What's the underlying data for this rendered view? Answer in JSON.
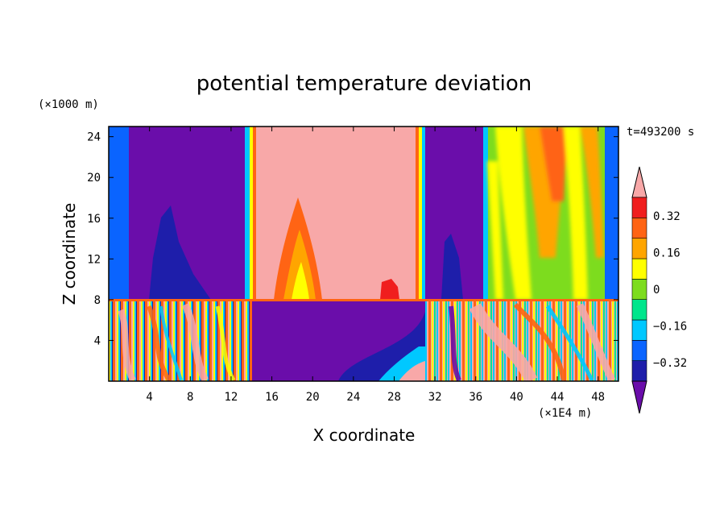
{
  "chart_data": {
    "type": "heatmap",
    "title": "potential temperature deviation",
    "xlabel": "X coordinate",
    "ylabel": "Z coordinate",
    "x_unit": "(×1E4 m)",
    "y_unit": "(×1000 m)",
    "time_label": "t=493200 s",
    "xlim": [
      0,
      50
    ],
    "ylim": [
      0,
      25
    ],
    "x_ticks": [
      4,
      8,
      12,
      16,
      20,
      24,
      28,
      32,
      36,
      40,
      44,
      48
    ],
    "y_ticks": [
      4,
      8,
      12,
      16,
      20,
      24
    ],
    "colorbar": {
      "labels": [
        0.32,
        0.16,
        0,
        -0.16,
        -0.32
      ],
      "label_text": [
        "0.32",
        "0.16",
        "0",
        "−0.16",
        "−0.32"
      ],
      "min": -0.4,
      "max": 0.4,
      "step": 0.08,
      "colors": [
        "#6a0daa",
        "#1e1eaa",
        "#0a64ff",
        "#00c8ff",
        "#00e68c",
        "#7ddc1e",
        "#ffff00",
        "#ffa500",
        "#ff6414",
        "#f01e1e",
        "#f8a8a8"
      ],
      "extend": "both"
    },
    "regions": [
      {
        "x": [
          0,
          3.2
        ],
        "z": [
          8,
          25
        ],
        "value": -0.2
      },
      {
        "x": [
          3.2,
          13.8
        ],
        "z": [
          8,
          25
        ],
        "value": -0.42
      },
      {
        "x": [
          14.2,
          30.5
        ],
        "z": [
          8,
          25
        ],
        "value": 0.42
      },
      {
        "x": [
          30.8,
          36.5
        ],
        "z": [
          8,
          25
        ],
        "value": -0.42
      },
      {
        "x": [
          36.8,
          49
        ],
        "z": [
          8,
          25
        ],
        "value": 0.1
      },
      {
        "x": [
          49,
          50
        ],
        "z": [
          8,
          25
        ],
        "value": -0.2
      },
      {
        "x": [
          0,
          14
        ],
        "z": [
          0,
          8
        ],
        "value": 0.0
      },
      {
        "x": [
          14,
          31
        ],
        "z": [
          0,
          8
        ],
        "value": -0.42
      },
      {
        "x": [
          31,
          50
        ],
        "z": [
          0,
          8
        ],
        "value": 0.3
      }
    ]
  }
}
